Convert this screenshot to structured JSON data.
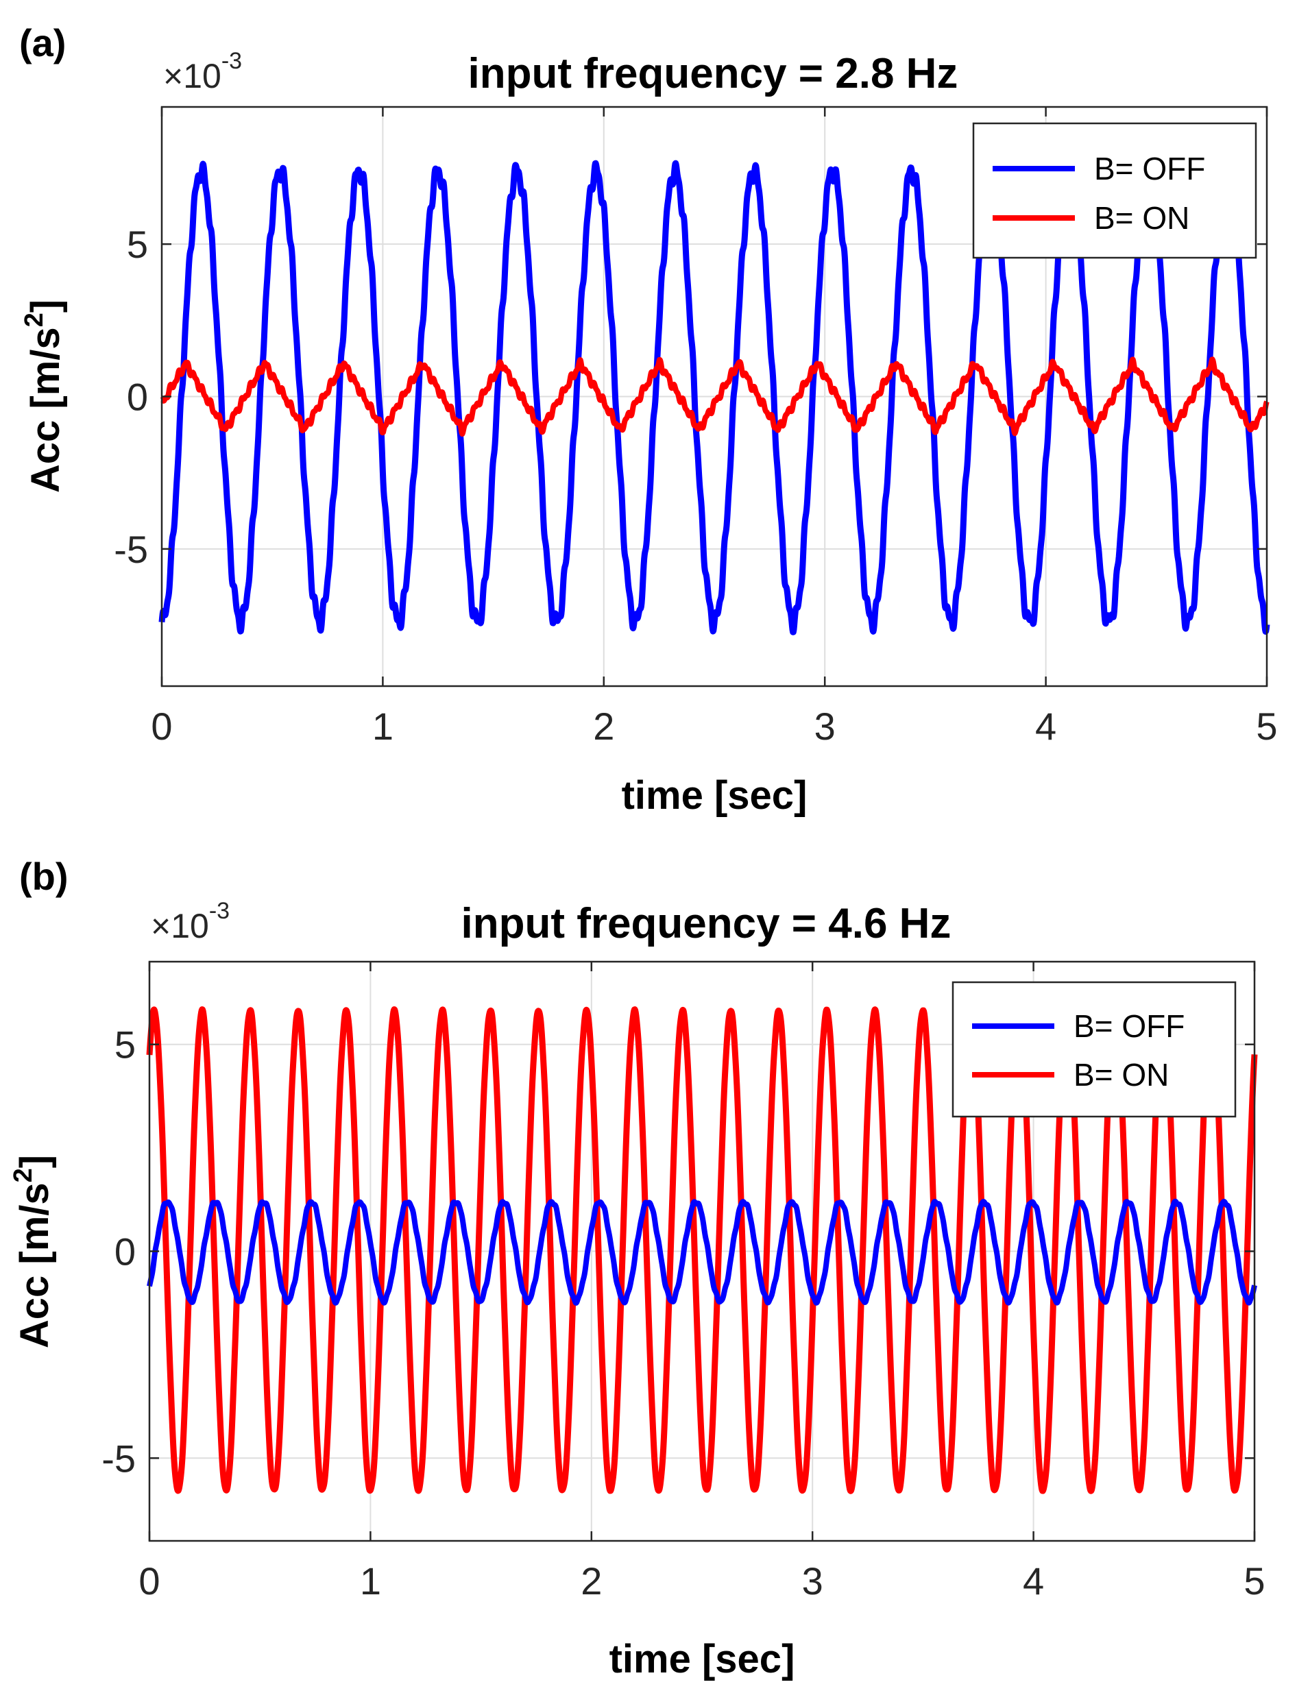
{
  "figure": {
    "colors": {
      "off": "#0000ff",
      "on": "#ff0000",
      "axis": "#262626",
      "grid": "#dedede",
      "background": "#ffffff"
    }
  },
  "chart_data": [
    {
      "type": "line",
      "panel_label": "(a)",
      "title": "input frequency = 2.8 Hz",
      "xlabel": "time [sec]",
      "ylabel_main": "Acc [m/s",
      "ylabel_sup": "2",
      "ylabel_end": "]",
      "exponent_prefix": "×10",
      "exponent_power": "-3",
      "xlim": [
        0,
        5
      ],
      "ylim": [
        -9.5,
        9.5
      ],
      "xticks": [
        0,
        1,
        2,
        3,
        4,
        5
      ],
      "xtick_labels": [
        "0",
        "1",
        "2",
        "3",
        "4",
        "5"
      ],
      "yticks": [
        -5,
        0,
        5
      ],
      "ytick_labels": [
        "-5",
        "0",
        "5"
      ],
      "grid": true,
      "legend_position": "top-right",
      "series": [
        {
          "name": "B= OFF",
          "color": "#0000ff",
          "frequency_hz": 2.8,
          "amplitude": 7.4,
          "phase_deg": -90,
          "wave": "sine",
          "noise": 0.35
        },
        {
          "name": "B= ON",
          "color": "#ff0000",
          "frequency_hz": 2.8,
          "amplitude": 1.1,
          "phase_deg": -20,
          "wave": "triangle",
          "noise": 0.15
        }
      ]
    },
    {
      "type": "line",
      "panel_label": "(b)",
      "title": "input frequency = 4.6 Hz",
      "xlabel": "time [sec]",
      "ylabel_main": "Acc [m/s",
      "ylabel_sup": "2",
      "ylabel_end": "]",
      "exponent_prefix": "×10",
      "exponent_power": "-3",
      "xlim": [
        0,
        5
      ],
      "ylim": [
        -7,
        7
      ],
      "xticks": [
        0,
        1,
        2,
        3,
        4,
        5
      ],
      "xtick_labels": [
        "0",
        "1",
        "2",
        "3",
        "4",
        "5"
      ],
      "yticks": [
        -5,
        0,
        5
      ],
      "ytick_labels": [
        "-5",
        "0",
        "5"
      ],
      "grid": true,
      "legend_position": "top-right",
      "series": [
        {
          "name": "B= OFF",
          "color": "#0000ff",
          "frequency_hz": 4.6,
          "amplitude": 1.2,
          "phase_deg": -45,
          "wave": "sine",
          "noise": 0.05
        },
        {
          "name": "B= ON",
          "color": "#ff0000",
          "frequency_hz": 4.6,
          "amplitude": 5.8,
          "phase_deg": 55,
          "wave": "sine",
          "noise": 0.05
        }
      ]
    }
  ]
}
